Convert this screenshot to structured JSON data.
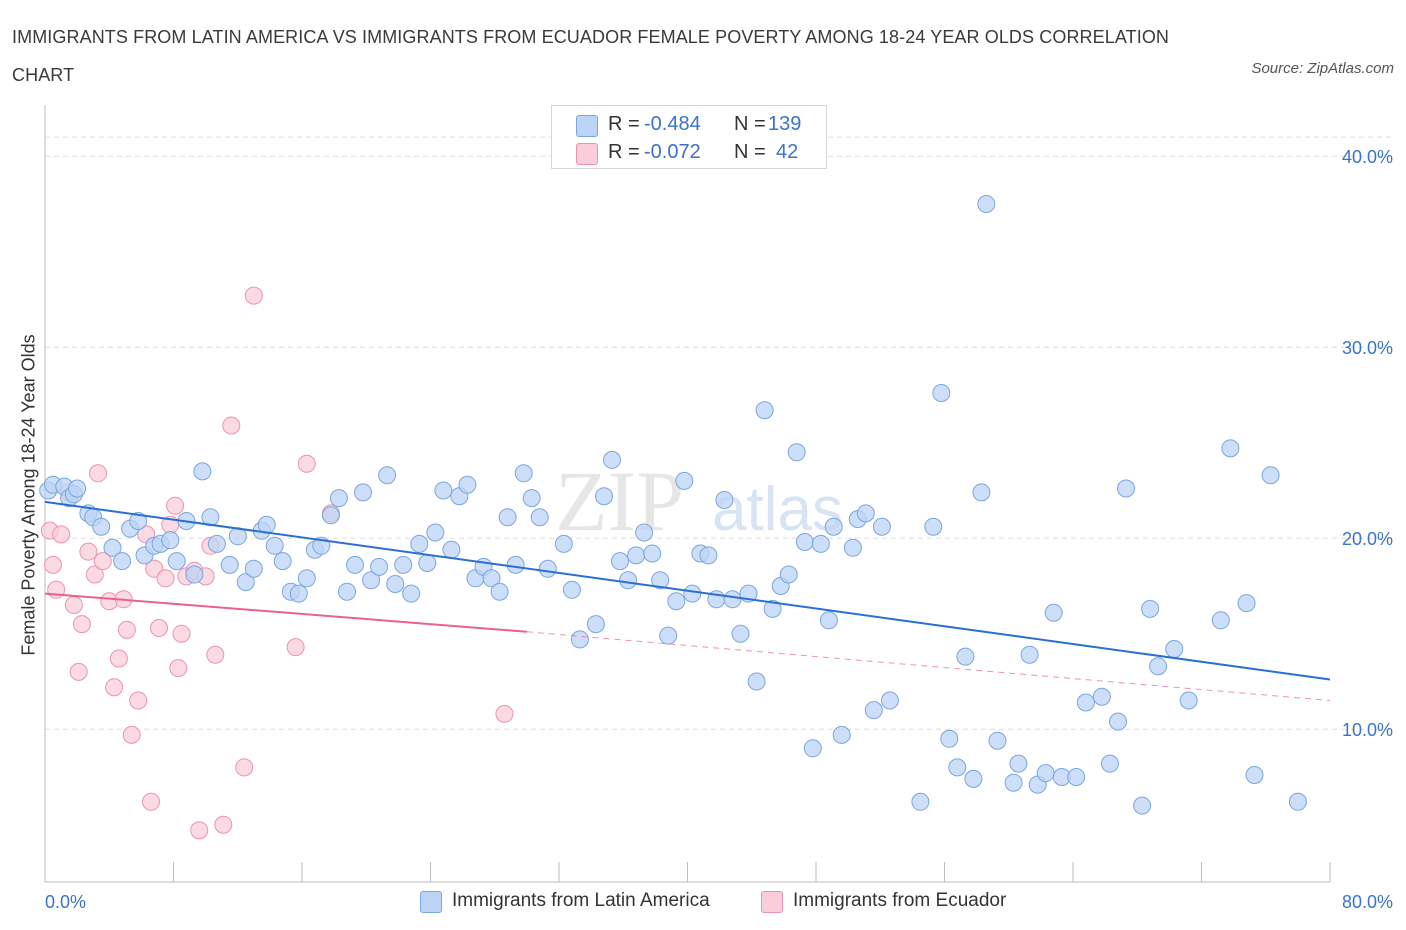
{
  "title": "IMMIGRANTS FROM LATIN AMERICA VS IMMIGRANTS FROM ECUADOR FEMALE POVERTY AMONG 18-24 YEAR OLDS CORRELATION CHART",
  "source": "Source: ZipAtlas.com",
  "watermark": {
    "part1": "ZIP",
    "part2": "atlas"
  },
  "colors": {
    "blue_fill": "#bcd4f5",
    "blue_stroke": "#7aa6e0",
    "blue_line": "#2a6fd4",
    "pink_fill": "#f9cdd9",
    "pink_stroke": "#ee93ad",
    "pink_line": "#e8628c",
    "tick_text": "#3a73c8",
    "grid": "#dedede"
  },
  "legend": {
    "rows": [
      {
        "r_label": "R =",
        "r_value": "-0.484",
        "n_label": "N =",
        "n_value": "139"
      },
      {
        "r_label": "R =",
        "r_value": "-0.072",
        "n_label": "N =",
        "n_value": "42"
      }
    ]
  },
  "chart_data": {
    "type": "scatter",
    "ylabel": "Female Poverty Among 18-24 Year Olds",
    "xlim": [
      0,
      80
    ],
    "ylim": [
      2,
      42
    ],
    "x_tick_labels": [
      "0.0%",
      "80.0%"
    ],
    "y_ticks": [
      10,
      20,
      30,
      40
    ],
    "y_tick_labels": [
      "10.0%",
      "20.0%",
      "30.0%",
      "40.0%"
    ],
    "grid": "horizontal dashed",
    "series": [
      {
        "name": "Immigrants from Latin America",
        "color": "#bcd4f5",
        "trend": {
          "x": [
            0,
            80
          ],
          "y": [
            21.9,
            12.6
          ],
          "style": "solid"
        },
        "points": [
          [
            0.2,
            22.5
          ],
          [
            0.5,
            22.8
          ],
          [
            1.2,
            22.7
          ],
          [
            1.5,
            22.1
          ],
          [
            1.8,
            22.3
          ],
          [
            2,
            22.6
          ],
          [
            2.7,
            21.3
          ],
          [
            3,
            21.1
          ],
          [
            3.5,
            20.6
          ],
          [
            4.2,
            19.5
          ],
          [
            4.8,
            18.8
          ],
          [
            5.3,
            20.5
          ],
          [
            5.8,
            20.9
          ],
          [
            6.2,
            19.1
          ],
          [
            6.8,
            19.6
          ],
          [
            7.2,
            19.7
          ],
          [
            7.8,
            19.9
          ],
          [
            8.2,
            18.8
          ],
          [
            8.8,
            20.9
          ],
          [
            9.3,
            18.1
          ],
          [
            9.8,
            23.5
          ],
          [
            10.3,
            21.1
          ],
          [
            10.7,
            19.7
          ],
          [
            11.5,
            18.6
          ],
          [
            12,
            20.1
          ],
          [
            12.5,
            17.7
          ],
          [
            13,
            18.4
          ],
          [
            13.5,
            20.4
          ],
          [
            13.8,
            20.7
          ],
          [
            14.3,
            19.6
          ],
          [
            14.8,
            18.8
          ],
          [
            15.3,
            17.2
          ],
          [
            15.8,
            17.1
          ],
          [
            16.3,
            17.9
          ],
          [
            16.8,
            19.4
          ],
          [
            17.2,
            19.6
          ],
          [
            17.8,
            21.2
          ],
          [
            18.3,
            22.1
          ],
          [
            18.8,
            17.2
          ],
          [
            19.3,
            18.6
          ],
          [
            19.8,
            22.4
          ],
          [
            20.3,
            17.8
          ],
          [
            20.8,
            18.5
          ],
          [
            21.3,
            23.3
          ],
          [
            21.8,
            17.6
          ],
          [
            22.3,
            18.6
          ],
          [
            22.8,
            17.1
          ],
          [
            23.3,
            19.7
          ],
          [
            23.8,
            18.7
          ],
          [
            24.3,
            20.3
          ],
          [
            24.8,
            22.5
          ],
          [
            25.3,
            19.4
          ],
          [
            25.8,
            22.2
          ],
          [
            26.3,
            22.8
          ],
          [
            26.8,
            17.9
          ],
          [
            27.3,
            18.5
          ],
          [
            27.8,
            17.9
          ],
          [
            28.3,
            17.2
          ],
          [
            28.8,
            21.1
          ],
          [
            29.3,
            18.6
          ],
          [
            29.8,
            23.4
          ],
          [
            30.3,
            22.1
          ],
          [
            30.8,
            21.1
          ],
          [
            31.3,
            18.4
          ],
          [
            32.3,
            19.7
          ],
          [
            32.8,
            17.3
          ],
          [
            33.3,
            14.7
          ],
          [
            34.3,
            15.5
          ],
          [
            34.8,
            22.2
          ],
          [
            35.3,
            24.1
          ],
          [
            35.8,
            18.8
          ],
          [
            36.3,
            17.8
          ],
          [
            36.8,
            19.1
          ],
          [
            37.3,
            20.3
          ],
          [
            37.8,
            19.2
          ],
          [
            38.3,
            17.8
          ],
          [
            38.8,
            14.9
          ],
          [
            39.3,
            16.7
          ],
          [
            39.8,
            23
          ],
          [
            40.3,
            17.1
          ],
          [
            40.8,
            19.2
          ],
          [
            41.3,
            19.1
          ],
          [
            41.8,
            16.8
          ],
          [
            42.3,
            22
          ],
          [
            42.8,
            16.8
          ],
          [
            43.3,
            15
          ],
          [
            43.8,
            17.1
          ],
          [
            44.3,
            12.5
          ],
          [
            44.8,
            26.7
          ],
          [
            45.3,
            16.3
          ],
          [
            45.8,
            17.5
          ],
          [
            46.3,
            18.1
          ],
          [
            46.8,
            24.5
          ],
          [
            47.3,
            19.8
          ],
          [
            47.8,
            9
          ],
          [
            48.3,
            19.7
          ],
          [
            48.8,
            15.7
          ],
          [
            49.1,
            20.6
          ],
          [
            49.6,
            9.7
          ],
          [
            50.3,
            19.5
          ],
          [
            50.6,
            21
          ],
          [
            51.1,
            21.3
          ],
          [
            51.6,
            11
          ],
          [
            52.1,
            20.6
          ],
          [
            52.6,
            11.5
          ],
          [
            54.5,
            6.2
          ],
          [
            55.3,
            20.6
          ],
          [
            55.8,
            27.6
          ],
          [
            56.3,
            9.5
          ],
          [
            56.8,
            8
          ],
          [
            57.3,
            13.8
          ],
          [
            57.8,
            7.4
          ],
          [
            58.3,
            22.4
          ],
          [
            59.3,
            9.4
          ],
          [
            60.3,
            7.2
          ],
          [
            60.6,
            8.2
          ],
          [
            61.3,
            13.9
          ],
          [
            61.8,
            7.1
          ],
          [
            62.3,
            7.7
          ],
          [
            62.8,
            16.1
          ],
          [
            63.3,
            7.5
          ],
          [
            64.2,
            7.5
          ],
          [
            64.8,
            11.4
          ],
          [
            65.8,
            11.7
          ],
          [
            66.3,
            8.2
          ],
          [
            66.8,
            10.4
          ],
          [
            67.3,
            22.6
          ],
          [
            68.3,
            6
          ],
          [
            68.8,
            16.3
          ],
          [
            69.3,
            13.3
          ],
          [
            70.3,
            14.2
          ],
          [
            71.2,
            11.5
          ],
          [
            73.2,
            15.7
          ],
          [
            73.8,
            24.7
          ],
          [
            74.8,
            16.6
          ],
          [
            75.3,
            7.6
          ],
          [
            76.3,
            23.3
          ],
          [
            78,
            6.2
          ],
          [
            58.6,
            37.5
          ]
        ]
      },
      {
        "name": "Immigrants from Ecuador",
        "color": "#f9cdd9",
        "trend": {
          "x": [
            0,
            30
          ],
          "y": [
            17.1,
            15.1
          ],
          "style": "solid",
          "extended": {
            "x": [
              30,
              80
            ],
            "y": [
              15.1,
              11.5
            ],
            "style": "dashed"
          }
        },
        "points": [
          [
            0.3,
            20.4
          ],
          [
            0.5,
            18.6
          ],
          [
            0.7,
            17.3
          ],
          [
            1,
            20.2
          ],
          [
            1.5,
            22.4
          ],
          [
            1.8,
            16.5
          ],
          [
            2.1,
            13
          ],
          [
            2.3,
            15.5
          ],
          [
            2.7,
            19.3
          ],
          [
            3.1,
            18.1
          ],
          [
            3.3,
            23.4
          ],
          [
            3.6,
            18.8
          ],
          [
            4,
            16.7
          ],
          [
            4.3,
            12.2
          ],
          [
            4.6,
            13.7
          ],
          [
            4.9,
            16.8
          ],
          [
            5.1,
            15.2
          ],
          [
            5.4,
            9.7
          ],
          [
            5.8,
            11.5
          ],
          [
            6.3,
            20.2
          ],
          [
            6.6,
            6.2
          ],
          [
            6.8,
            18.4
          ],
          [
            7.1,
            15.3
          ],
          [
            7.5,
            17.9
          ],
          [
            7.8,
            20.7
          ],
          [
            8.1,
            21.7
          ],
          [
            8.3,
            13.2
          ],
          [
            8.5,
            15
          ],
          [
            8.8,
            18
          ],
          [
            9.3,
            18.3
          ],
          [
            9.6,
            4.7
          ],
          [
            10,
            18
          ],
          [
            10.3,
            19.6
          ],
          [
            10.6,
            13.9
          ],
          [
            11.1,
            5
          ],
          [
            11.6,
            25.9
          ],
          [
            12.4,
            8
          ],
          [
            13,
            32.7
          ],
          [
            15.6,
            14.3
          ],
          [
            16.3,
            23.9
          ],
          [
            17.8,
            21.3
          ],
          [
            28.6,
            10.8
          ]
        ]
      }
    ]
  },
  "bottom_legend": [
    {
      "label": "Immigrants from Latin America"
    },
    {
      "label": "Immigrants from Ecuador"
    }
  ]
}
